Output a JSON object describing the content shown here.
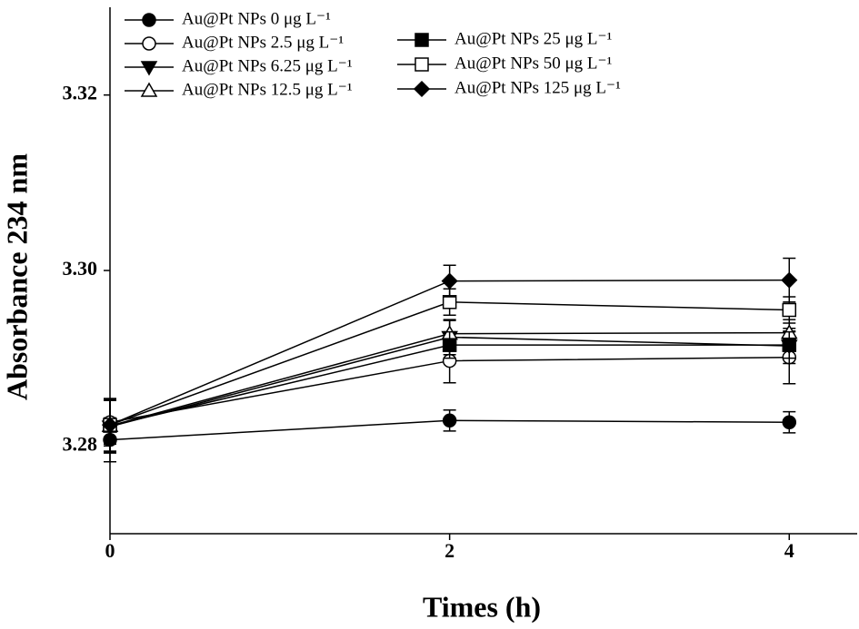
{
  "chart_data": {
    "type": "line",
    "xlabel": "Times (h)",
    "ylabel": "Absorbance 234 nm",
    "x": [
      0,
      2,
      4
    ],
    "xlim": [
      0,
      4.4
    ],
    "xticks": [
      0,
      2,
      4
    ],
    "ylim": [
      3.27,
      3.33
    ],
    "yticks": [
      {
        "value": 3.28,
        "label": "3.28"
      },
      {
        "value": 3.3,
        "label": "3.30"
      },
      {
        "value": 3.32,
        "label": "3.32"
      }
    ],
    "series": [
      {
        "name": "Au@Pt NPs 0 μg L⁻¹",
        "color": "#000000",
        "marker": "circle",
        "filled": true,
        "values": [
          3.2807,
          3.2829,
          3.2827
        ],
        "errors": [
          0.0025,
          0.0012,
          0.0012
        ]
      },
      {
        "name": "Au@Pt NPs 2.5 μg L⁻¹",
        "color": "#000000",
        "marker": "circle",
        "filled": false,
        "values": [
          3.2827,
          3.2897,
          3.2901
        ],
        "errors": [
          0.0025,
          0.0025,
          0.003
        ]
      },
      {
        "name": "Au@Pt NPs 6.25 μg L⁻¹",
        "color": "#000000",
        "marker": "triangle-down",
        "filled": true,
        "values": [
          3.2822,
          3.2924,
          3.2914
        ],
        "errors": [
          0.003,
          0.002,
          0.002
        ]
      },
      {
        "name": "Au@Pt NPs 12.5 μg L⁻¹",
        "color": "#000000",
        "marker": "triangle-up",
        "filled": false,
        "values": [
          3.2823,
          3.2928,
          3.2929
        ],
        "errors": [
          0.003,
          0.0015,
          0.0015
        ]
      },
      {
        "name": "Au@Pt NPs 25 μg L⁻¹",
        "color": "#000000",
        "marker": "square",
        "filled": true,
        "values": [
          3.2823,
          3.2915,
          3.2915
        ],
        "errors": [
          0.003,
          0.0015,
          0.0015
        ]
      },
      {
        "name": "Au@Pt NPs 50 μg L⁻¹",
        "color": "#000000",
        "marker": "square",
        "filled": false,
        "values": [
          3.2824,
          3.2964,
          3.2955
        ],
        "errors": [
          0.003,
          0.0015,
          0.0015
        ]
      },
      {
        "name": "Au@Pt NPs 125 μg L⁻¹",
        "color": "#000000",
        "marker": "diamond",
        "filled": true,
        "values": [
          3.2824,
          3.2988,
          3.2989
        ],
        "errors": [
          0.003,
          0.0018,
          0.0025
        ]
      }
    ]
  }
}
